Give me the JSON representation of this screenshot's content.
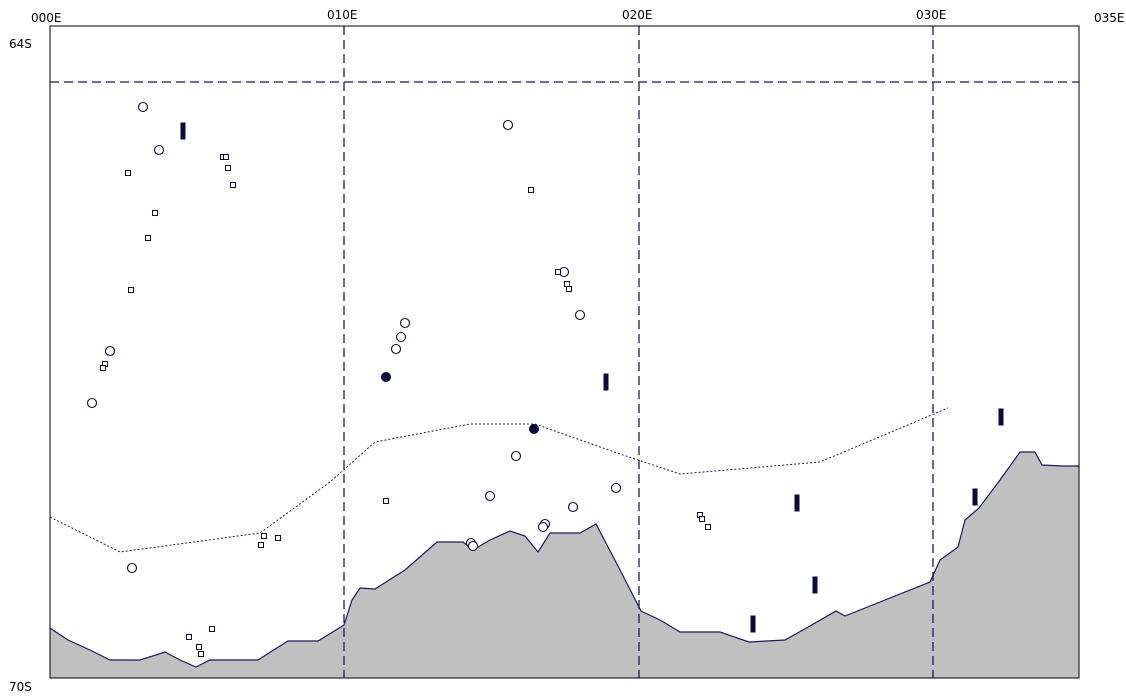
{
  "map": {
    "axis": {
      "lon_labels": [
        "000E",
        "010E",
        "020E",
        "030E",
        "035E"
      ],
      "lat_labels": [
        "64S",
        "70S"
      ]
    },
    "colors": {
      "land": "#c0c0c0",
      "coast": "#1a1a5c",
      "grid": "#1a1a5c",
      "marker": "#0b0b3a"
    },
    "region": {
      "lon_range": [
        0,
        35
      ],
      "lat_range": [
        -64,
        -70
      ]
    },
    "symbol_types": [
      "open-circle",
      "small-square",
      "filled-bar",
      "filled-circle"
    ]
  }
}
